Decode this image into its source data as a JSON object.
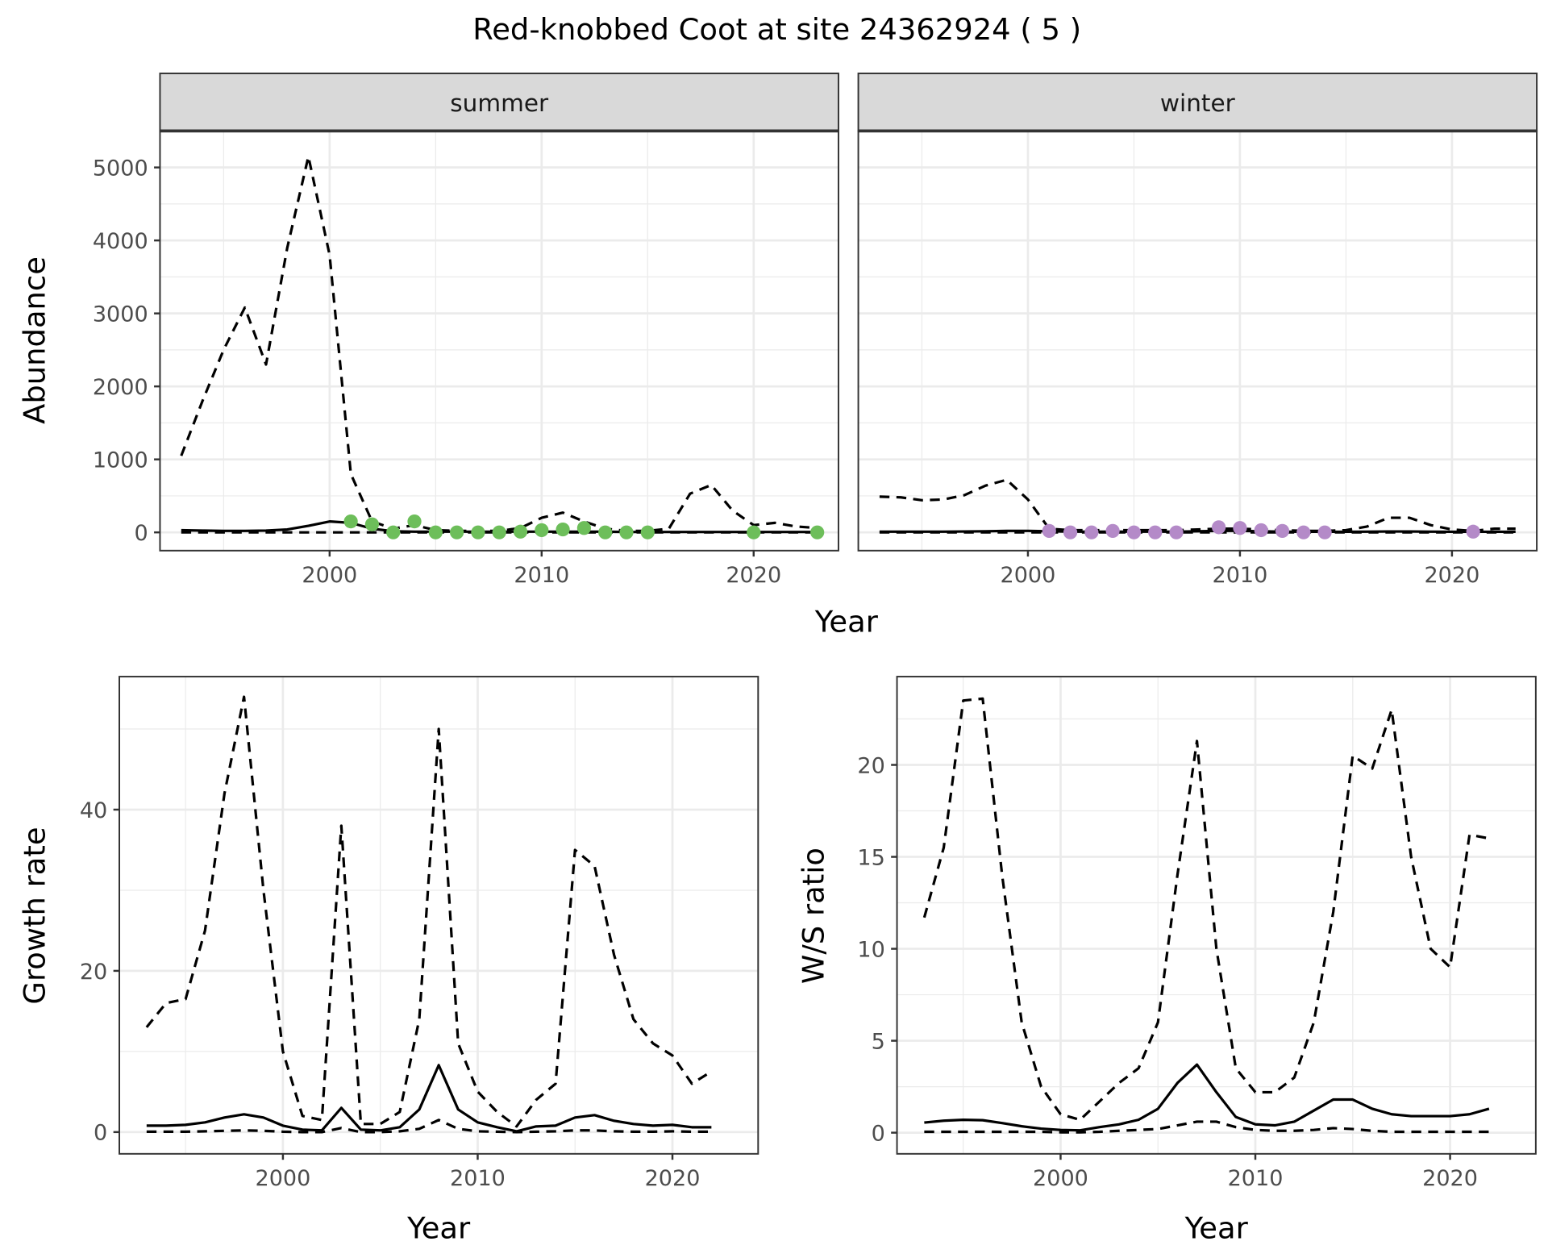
{
  "title": "Red-knobbed Coot at site 24362924 ( 5 )",
  "colors": {
    "summer_points": "#6dbe5a",
    "winter_points": "#b48ac8",
    "strip_bg": "#d9d9d9",
    "grid": "#ebebeb",
    "line": "#000000"
  },
  "chart_data": [
    {
      "type": "line",
      "panel": "summer",
      "strip_label": "summer",
      "xlabel": "Year",
      "ylabel": "Abundance",
      "xlim": [
        1992,
        2024
      ],
      "ylim": [
        -250,
        5500
      ],
      "xticks": [
        2000,
        2010,
        2020
      ],
      "yticks": [
        0,
        1000,
        2000,
        3000,
        4000,
        5000
      ],
      "x": [
        1993,
        1994,
        1995,
        1996,
        1997,
        1998,
        1999,
        2000,
        2001,
        2002,
        2003,
        2004,
        2005,
        2006,
        2007,
        2008,
        2009,
        2010,
        2011,
        2012,
        2013,
        2014,
        2015,
        2016,
        2017,
        2018,
        2019,
        2020,
        2021,
        2022,
        2023
      ],
      "series": [
        {
          "name": "upper",
          "style": "dashed",
          "values": [
            1050,
            1800,
            2500,
            3080,
            2300,
            3900,
            5150,
            3800,
            800,
            150,
            50,
            100,
            30,
            20,
            20,
            20,
            60,
            200,
            270,
            150,
            50,
            20,
            20,
            50,
            530,
            650,
            300,
            100,
            130,
            80,
            60
          ]
        },
        {
          "name": "mean",
          "style": "solid",
          "values": [
            30,
            25,
            20,
            20,
            25,
            40,
            90,
            150,
            130,
            50,
            15,
            10,
            10,
            10,
            10,
            10,
            10,
            10,
            10,
            10,
            10,
            5,
            5,
            5,
            5,
            5,
            5,
            5,
            5,
            5,
            5
          ]
        },
        {
          "name": "lower",
          "style": "dashed",
          "values": [
            0,
            0,
            0,
            0,
            0,
            0,
            0,
            0,
            0,
            0,
            0,
            0,
            0,
            0,
            0,
            0,
            0,
            0,
            0,
            0,
            0,
            0,
            0,
            0,
            0,
            0,
            0,
            0,
            0,
            0,
            0
          ]
        }
      ],
      "points": {
        "x": [
          2001,
          2002,
          2003,
          2004,
          2005,
          2006,
          2007,
          2008,
          2009,
          2010,
          2011,
          2012,
          2013,
          2014,
          2015,
          2020,
          2023
        ],
        "y": [
          150,
          110,
          0,
          150,
          0,
          0,
          0,
          0,
          10,
          30,
          40,
          60,
          0,
          0,
          0,
          0,
          0
        ]
      }
    },
    {
      "type": "line",
      "panel": "winter",
      "strip_label": "winter",
      "xlabel": "Year",
      "ylabel": "Abundance",
      "xlim": [
        1992,
        2024
      ],
      "ylim": [
        -250,
        5500
      ],
      "xticks": [
        2000,
        2010,
        2020
      ],
      "yticks": [
        0,
        1000,
        2000,
        3000,
        4000,
        5000
      ],
      "x": [
        1993,
        1994,
        1995,
        1996,
        1997,
        1998,
        1999,
        2000,
        2001,
        2002,
        2003,
        2004,
        2005,
        2006,
        2007,
        2008,
        2009,
        2010,
        2011,
        2012,
        2013,
        2014,
        2015,
        2016,
        2017,
        2018,
        2019,
        2020,
        2021,
        2022,
        2023
      ],
      "series": [
        {
          "name": "upper",
          "style": "dashed",
          "values": [
            490,
            480,
            440,
            450,
            510,
            640,
            720,
            450,
            50,
            30,
            30,
            30,
            30,
            30,
            30,
            40,
            50,
            50,
            40,
            30,
            20,
            20,
            30,
            80,
            200,
            200,
            100,
            40,
            20,
            50,
            50
          ]
        },
        {
          "name": "mean",
          "style": "solid",
          "values": [
            10,
            10,
            10,
            10,
            12,
            15,
            20,
            20,
            15,
            10,
            10,
            10,
            10,
            10,
            10,
            15,
            20,
            20,
            15,
            10,
            8,
            8,
            8,
            10,
            12,
            12,
            10,
            8,
            8,
            8,
            8
          ]
        },
        {
          "name": "lower",
          "style": "dashed",
          "values": [
            0,
            0,
            0,
            0,
            0,
            0,
            0,
            0,
            0,
            0,
            0,
            0,
            0,
            0,
            0,
            0,
            0,
            0,
            0,
            0,
            0,
            0,
            0,
            0,
            0,
            0,
            0,
            0,
            0,
            0,
            0
          ]
        }
      ],
      "points": {
        "x": [
          2001,
          2002,
          2003,
          2004,
          2005,
          2006,
          2007,
          2009,
          2010,
          2011,
          2012,
          2013,
          2014,
          2021
        ],
        "y": [
          20,
          0,
          0,
          20,
          0,
          0,
          0,
          70,
          60,
          30,
          20,
          0,
          0,
          10
        ]
      }
    },
    {
      "type": "line",
      "panel": "growth",
      "xlabel": "Year",
      "ylabel": "Growth rate",
      "xlim": [
        1991.6,
        2024.4
      ],
      "ylim": [
        -2.7,
        56.5
      ],
      "xticks": [
        2000,
        2010,
        2020
      ],
      "yticks": [
        0,
        20,
        40
      ],
      "x": [
        1993,
        1994,
        1995,
        1996,
        1997,
        1998,
        1999,
        2000,
        2001,
        2002,
        2003,
        2004,
        2005,
        2006,
        2007,
        2008,
        2009,
        2010,
        2011,
        2012,
        2013,
        2014,
        2015,
        2016,
        2017,
        2018,
        2019,
        2020,
        2021,
        2022
      ],
      "series": [
        {
          "name": "upper",
          "style": "dashed",
          "values": [
            13,
            16,
            16.5,
            25,
            42,
            54,
            30,
            10,
            2,
            1.5,
            38,
            1,
            1,
            2.5,
            14,
            50,
            11,
            5,
            2.5,
            0.7,
            4,
            6,
            35,
            33,
            22,
            14,
            11,
            9.5,
            6,
            7.5
          ]
        },
        {
          "name": "mean",
          "style": "solid",
          "values": [
            0.8,
            0.8,
            0.9,
            1.2,
            1.8,
            2.2,
            1.8,
            0.8,
            0.3,
            0.2,
            3,
            0.3,
            0.2,
            0.6,
            2.8,
            8.3,
            2.8,
            1.2,
            0.6,
            0.1,
            0.7,
            0.8,
            1.8,
            2.1,
            1.4,
            1,
            0.8,
            0.9,
            0.6,
            0.6
          ]
        },
        {
          "name": "lower",
          "style": "dashed",
          "values": [
            0.05,
            0.05,
            0.05,
            0.1,
            0.15,
            0.2,
            0.15,
            0.05,
            0,
            0,
            0.5,
            0,
            0,
            0.1,
            0.4,
            1.5,
            0.4,
            0.1,
            0.05,
            0,
            0.05,
            0.1,
            0.2,
            0.2,
            0.1,
            0.05,
            0.05,
            0.1,
            0.05,
            0.05
          ]
        }
      ]
    },
    {
      "type": "line",
      "panel": "ws_ratio",
      "xlabel": "Year",
      "ylabel": "W/S ratio",
      "xlim": [
        1991.6,
        2024.4
      ],
      "ylim": [
        -1.15,
        24.8
      ],
      "xticks": [
        2000,
        2010,
        2020
      ],
      "yticks": [
        0,
        5,
        10,
        15,
        20
      ],
      "x": [
        1993,
        1994,
        1995,
        1996,
        1997,
        1998,
        1999,
        2000,
        2001,
        2002,
        2003,
        2004,
        2005,
        2006,
        2007,
        2008,
        2009,
        2010,
        2011,
        2012,
        2013,
        2014,
        2015,
        2016,
        2017,
        2018,
        2019,
        2020,
        2021,
        2022
      ],
      "series": [
        {
          "name": "upper",
          "style": "dashed",
          "values": [
            11.7,
            15.5,
            23.5,
            23.6,
            14,
            6,
            2.5,
            1,
            0.7,
            1.7,
            2.7,
            3.5,
            6,
            14,
            21.3,
            10,
            3.5,
            2.2,
            2.2,
            3,
            6,
            12,
            20.5,
            19.8,
            23,
            15,
            10,
            9,
            16.2,
            16
          ]
        },
        {
          "name": "mean",
          "style": "solid",
          "values": [
            0.55,
            0.65,
            0.7,
            0.68,
            0.52,
            0.35,
            0.22,
            0.15,
            0.13,
            0.3,
            0.45,
            0.7,
            1.3,
            2.7,
            3.7,
            2.2,
            0.85,
            0.45,
            0.4,
            0.6,
            1.2,
            1.8,
            1.8,
            1.3,
            1,
            0.9,
            0.9,
            0.9,
            1,
            1.3
          ]
        },
        {
          "name": "lower",
          "style": "dashed",
          "values": [
            0.05,
            0.05,
            0.05,
            0.05,
            0.05,
            0.05,
            0.05,
            0.02,
            0.02,
            0.05,
            0.1,
            0.15,
            0.2,
            0.4,
            0.6,
            0.6,
            0.3,
            0.15,
            0.1,
            0.1,
            0.15,
            0.25,
            0.2,
            0.1,
            0.05,
            0.05,
            0.05,
            0.05,
            0.05,
            0.05
          ]
        }
      ]
    }
  ],
  "shared_xlabel_top": "Year"
}
